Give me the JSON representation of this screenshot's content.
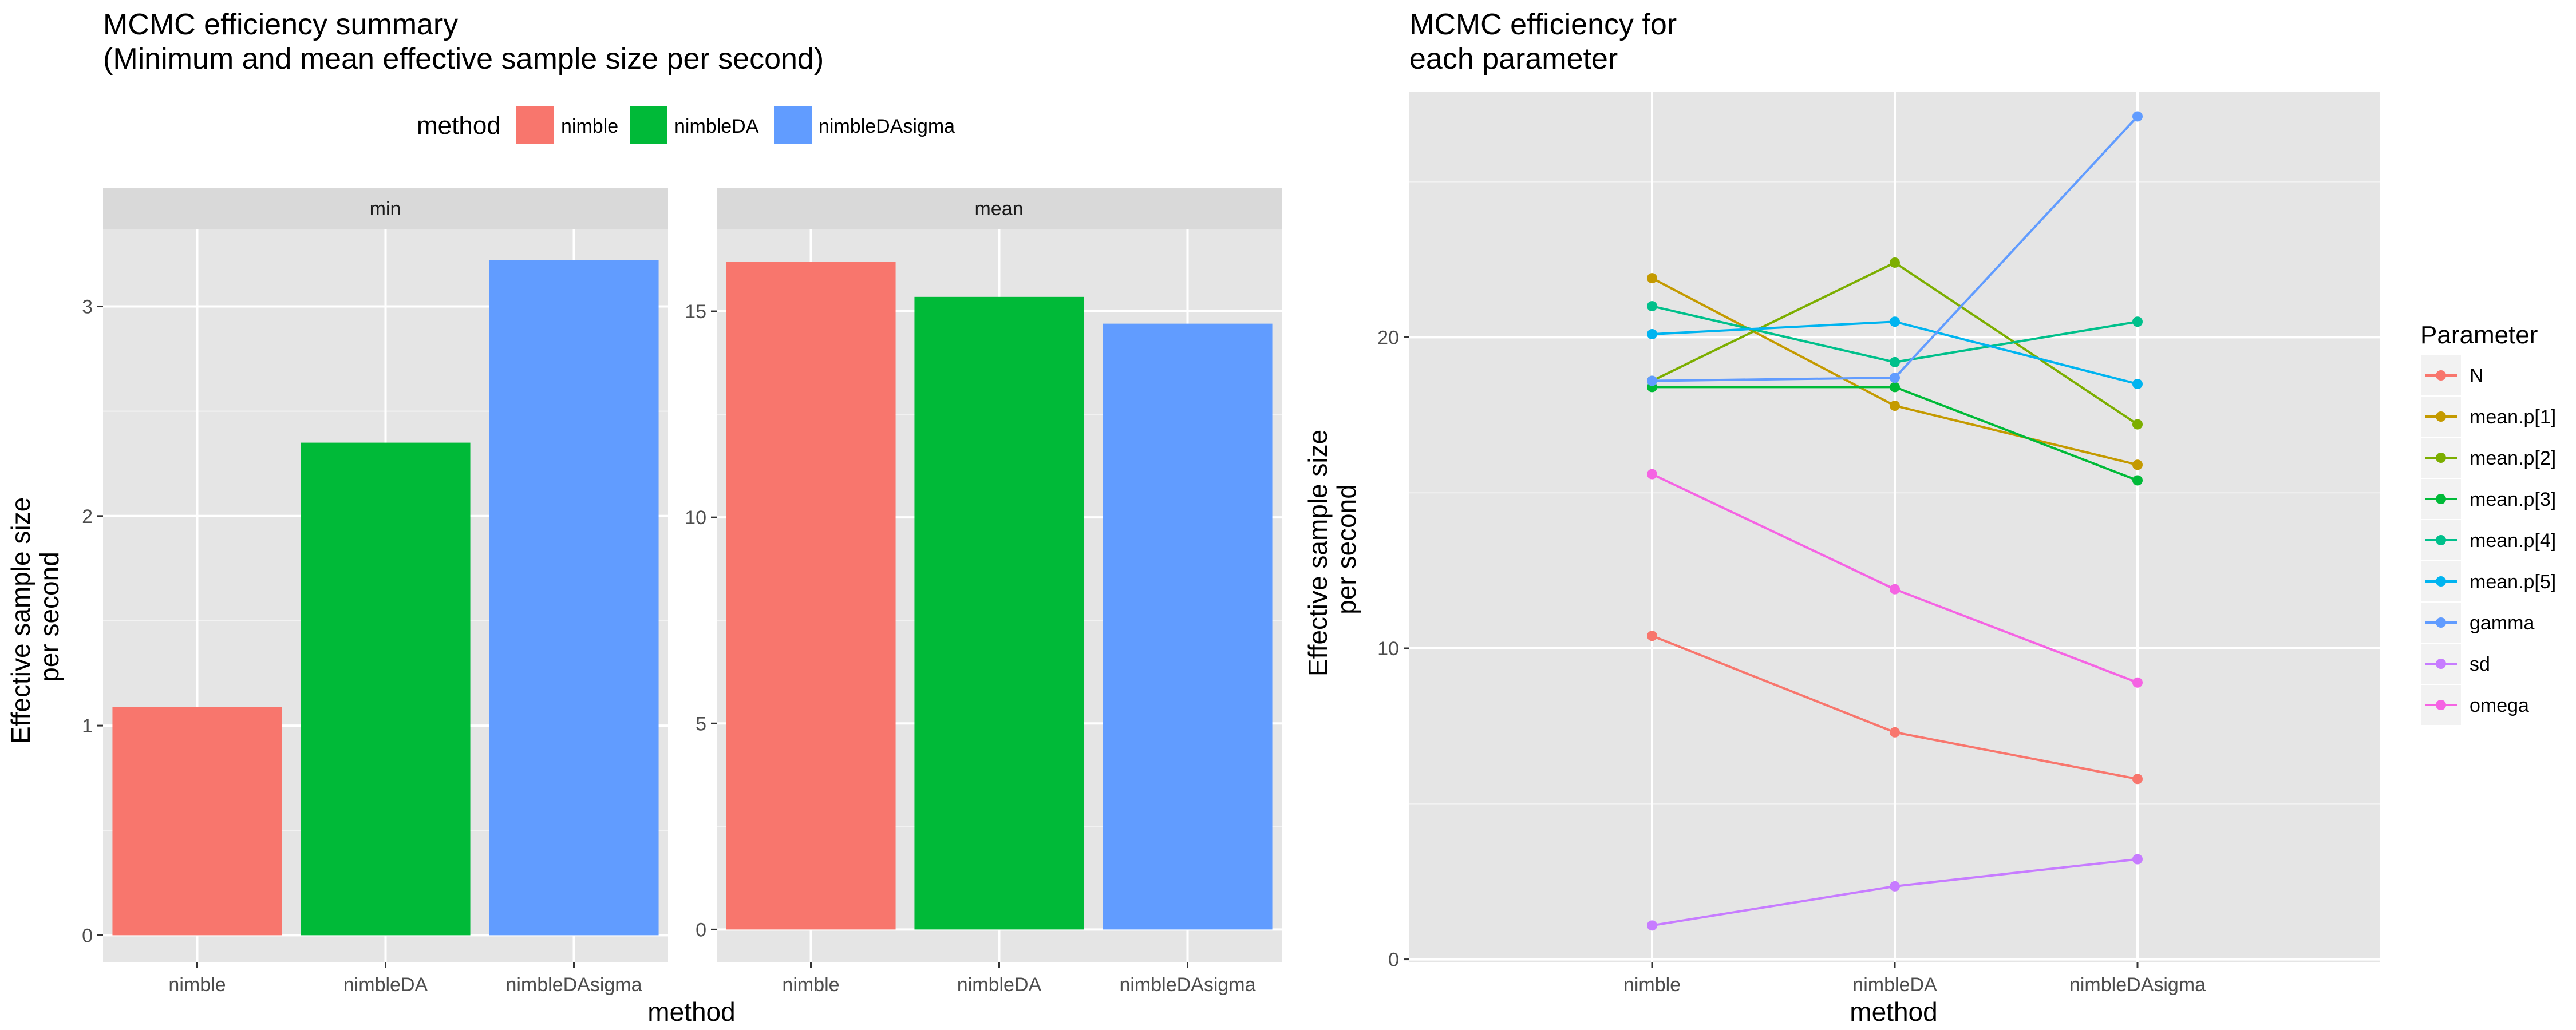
{
  "chart_data": [
    {
      "type": "bar",
      "title": "MCMC efficiency summary\n (Minimum and mean effective sample size per second)",
      "xlabel": "method",
      "ylabel": "Effective sample size\nper second",
      "legend": {
        "title": "method",
        "position": "top",
        "entries": [
          {
            "label": "nimble",
            "color": "#F8766D"
          },
          {
            "label": "nimbleDA",
            "color": "#00BA38"
          },
          {
            "label": "nimbleDAsigma",
            "color": "#619CFF"
          }
        ]
      },
      "categories": [
        "nimble",
        "nimbleDA",
        "nimbleDAsigma"
      ],
      "facets": [
        {
          "strip": "min",
          "values": [
            1.09,
            2.35,
            3.22
          ],
          "ylim": [
            -0.13,
            3.37
          ],
          "yticks": [
            0,
            1,
            2,
            3
          ]
        },
        {
          "strip": "mean",
          "values": [
            16.2,
            15.35,
            14.7
          ],
          "ylim": [
            -0.8,
            17.0
          ],
          "yticks": [
            0,
            5,
            10,
            15
          ]
        }
      ],
      "grid": true
    },
    {
      "type": "line",
      "title": "MCMC efficiency for\n each parameter",
      "xlabel": "method",
      "ylabel": "Effective sample size\nper second",
      "categories": [
        "nimble",
        "nimbleDA",
        "nimbleDAsigma"
      ],
      "ylim": [
        -0.1,
        27.9
      ],
      "yticks": [
        0,
        10,
        20
      ],
      "grid": true,
      "legend": {
        "title": "Parameter",
        "position": "right"
      },
      "series": [
        {
          "name": "N",
          "color": "#F8766D",
          "values": [
            10.4,
            7.3,
            5.8
          ]
        },
        {
          "name": "mean.p[1]",
          "color": "#C49A00",
          "values": [
            21.9,
            17.8,
            15.9
          ]
        },
        {
          "name": "mean.p[2]",
          "color": "#7CAE00",
          "values": [
            18.6,
            22.4,
            17.2
          ]
        },
        {
          "name": "mean.p[3]",
          "color": "#00BA38",
          "values": [
            18.4,
            18.4,
            15.4
          ]
        },
        {
          "name": "mean.p[4]",
          "color": "#00C08B",
          "values": [
            21.0,
            19.2,
            20.5
          ]
        },
        {
          "name": "mean.p[5]",
          "color": "#00B4F0",
          "values": [
            20.1,
            20.5,
            18.5
          ]
        },
        {
          "name": "gamma",
          "color": "#619CFF",
          "values": [
            18.6,
            18.7,
            27.1
          ]
        },
        {
          "name": "sd",
          "color": "#C77CFF",
          "values": [
            1.09,
            2.35,
            3.22
          ]
        },
        {
          "name": "omega",
          "color": "#F564E3",
          "values": [
            15.6,
            11.9,
            8.9
          ]
        }
      ]
    }
  ]
}
